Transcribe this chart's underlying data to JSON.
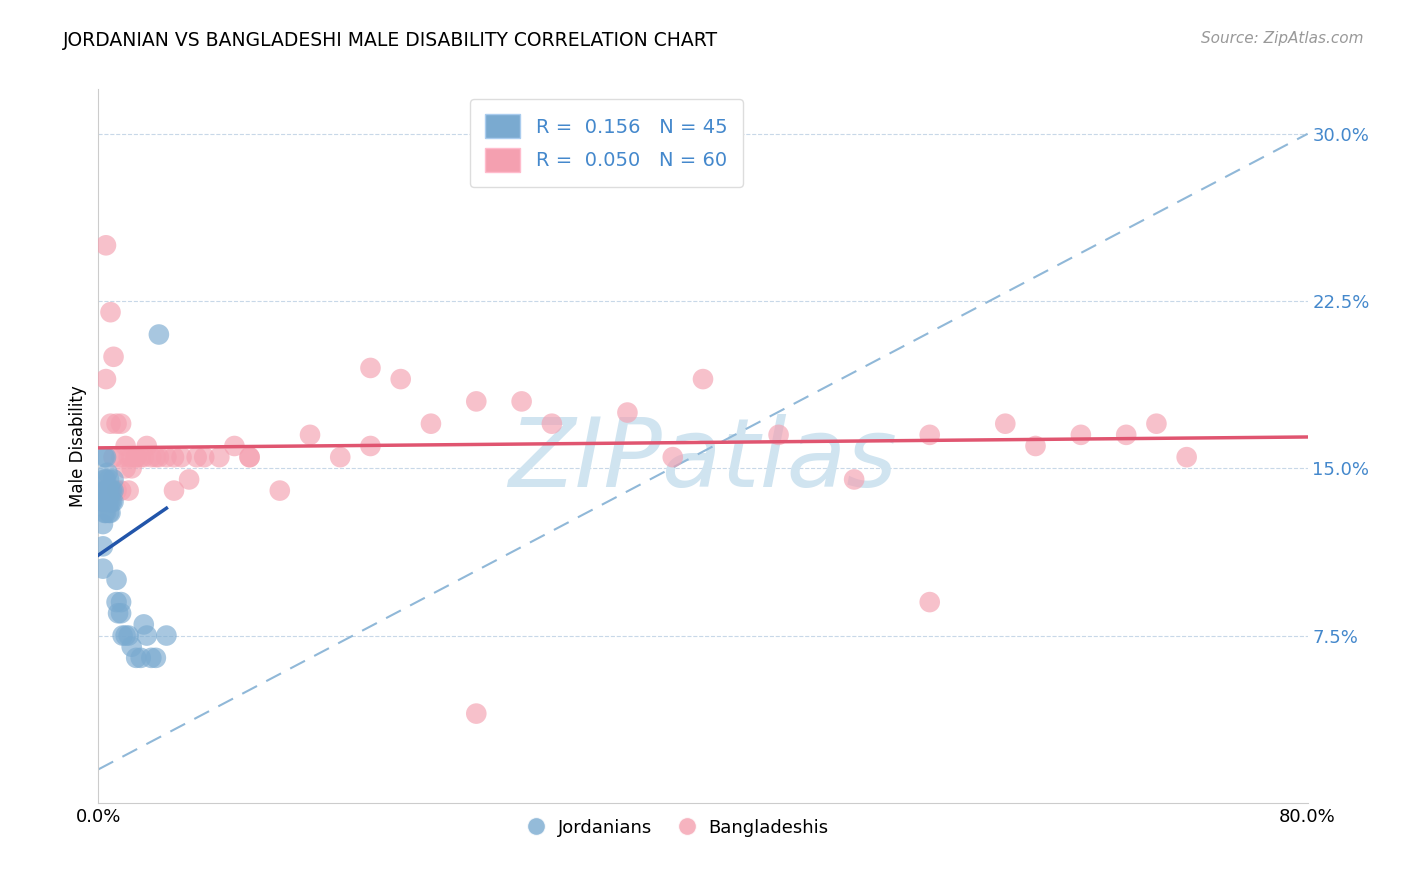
{
  "title": "JORDANIAN VS BANGLADESHI MALE DISABILITY CORRELATION CHART",
  "source": "Source: ZipAtlas.com",
  "ylabel": "Male Disability",
  "yticks": [
    0.075,
    0.15,
    0.225,
    0.3
  ],
  "ytick_labels": [
    "7.5%",
    "15.0%",
    "22.5%",
    "30.0%"
  ],
  "xlim": [
    0.0,
    0.8
  ],
  "ylim": [
    0.0,
    0.32
  ],
  "jordanian_color": "#7AAAD0",
  "bangladeshi_color": "#F4A0B0",
  "jordanian_line_color": "#2255AA",
  "bangladeshi_line_color": "#E05570",
  "dashed_line_color": "#90B8D8",
  "jordanian_R": 0.156,
  "jordanian_N": 45,
  "bangladeshi_R": 0.05,
  "bangladeshi_N": 60,
  "watermark": "ZIPatlas",
  "watermark_color": "#D0E4F0",
  "legend_color": "#4488CC",
  "jordanian_points_x": [
    0.003,
    0.003,
    0.003,
    0.003,
    0.004,
    0.004,
    0.004,
    0.004,
    0.005,
    0.005,
    0.005,
    0.005,
    0.005,
    0.006,
    0.006,
    0.006,
    0.007,
    0.007,
    0.007,
    0.007,
    0.008,
    0.008,
    0.008,
    0.009,
    0.009,
    0.01,
    0.01,
    0.01,
    0.012,
    0.012,
    0.013,
    0.015,
    0.015,
    0.016,
    0.018,
    0.02,
    0.022,
    0.025,
    0.028,
    0.03,
    0.032,
    0.035,
    0.038,
    0.04,
    0.045
  ],
  "jordanian_points_y": [
    0.105,
    0.115,
    0.125,
    0.135,
    0.13,
    0.14,
    0.145,
    0.155,
    0.13,
    0.135,
    0.14,
    0.145,
    0.155,
    0.135,
    0.14,
    0.148,
    0.13,
    0.135,
    0.14,
    0.145,
    0.13,
    0.135,
    0.14,
    0.135,
    0.14,
    0.135,
    0.14,
    0.145,
    0.1,
    0.09,
    0.085,
    0.085,
    0.09,
    0.075,
    0.075,
    0.075,
    0.07,
    0.065,
    0.065,
    0.08,
    0.075,
    0.065,
    0.065,
    0.21,
    0.075
  ],
  "bangladeshi_points_x": [
    0.005,
    0.005,
    0.008,
    0.008,
    0.01,
    0.01,
    0.012,
    0.012,
    0.015,
    0.015,
    0.015,
    0.018,
    0.018,
    0.02,
    0.02,
    0.022,
    0.022,
    0.025,
    0.025,
    0.028,
    0.03,
    0.032,
    0.035,
    0.038,
    0.04,
    0.045,
    0.05,
    0.055,
    0.06,
    0.065,
    0.07,
    0.08,
    0.09,
    0.1,
    0.12,
    0.14,
    0.16,
    0.18,
    0.2,
    0.22,
    0.25,
    0.28,
    0.3,
    0.35,
    0.38,
    0.4,
    0.45,
    0.5,
    0.55,
    0.6,
    0.62,
    0.65,
    0.68,
    0.7,
    0.72,
    0.55,
    0.18,
    0.1,
    0.05,
    0.25
  ],
  "bangladeshi_points_y": [
    0.25,
    0.19,
    0.22,
    0.17,
    0.2,
    0.155,
    0.17,
    0.14,
    0.17,
    0.155,
    0.14,
    0.16,
    0.15,
    0.155,
    0.14,
    0.155,
    0.15,
    0.155,
    0.155,
    0.155,
    0.155,
    0.16,
    0.155,
    0.155,
    0.155,
    0.155,
    0.14,
    0.155,
    0.145,
    0.155,
    0.155,
    0.155,
    0.16,
    0.155,
    0.14,
    0.165,
    0.155,
    0.16,
    0.19,
    0.17,
    0.18,
    0.18,
    0.17,
    0.175,
    0.155,
    0.19,
    0.165,
    0.145,
    0.165,
    0.17,
    0.16,
    0.165,
    0.165,
    0.17,
    0.155,
    0.09,
    0.195,
    0.155,
    0.155,
    0.04
  ]
}
